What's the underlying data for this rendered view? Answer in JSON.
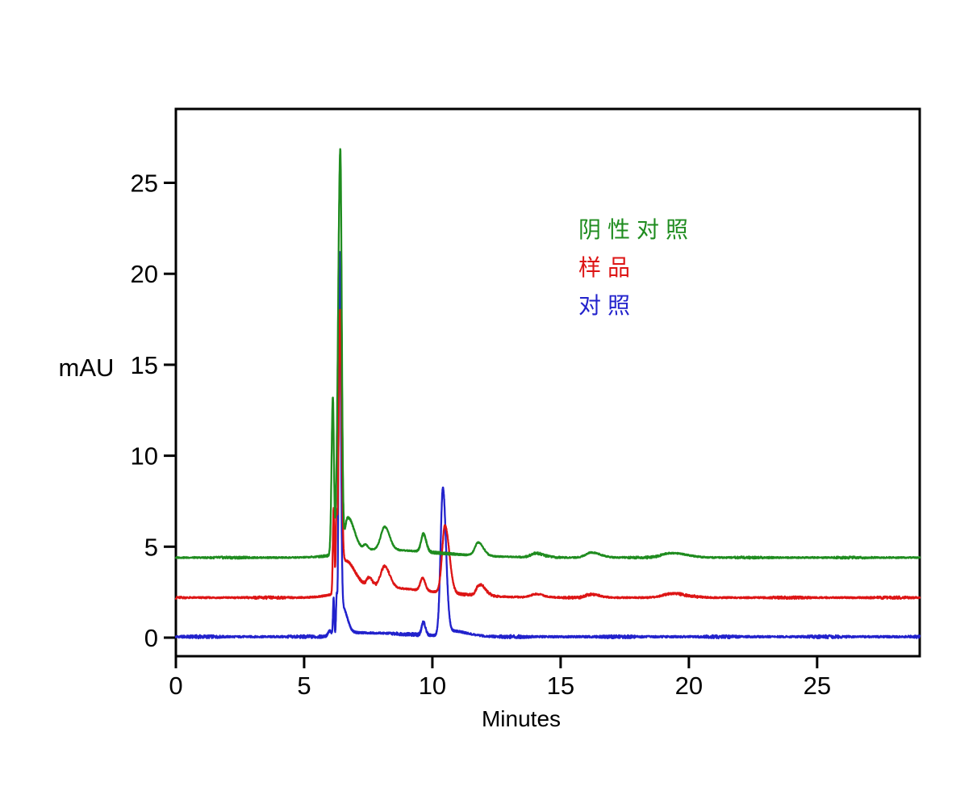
{
  "figure": {
    "background": "#ffffff",
    "description": "HPLC chromatogram overlay of three traces"
  },
  "axes": {
    "x_tick_labels": [
      "0",
      "5",
      "10",
      "15",
      "20",
      "25"
    ],
    "y_tick_labels": [
      "0",
      "5",
      "10",
      "15",
      "20",
      "25"
    ],
    "x_axis_title": "Minutes",
    "y_axis_title": "mAU"
  },
  "legend": {
    "items": [
      {
        "label": "阴性对照",
        "slug": "negative-control",
        "color": "#1f8c1f"
      },
      {
        "label": "样品",
        "slug": "sample",
        "color": "#dd1515"
      },
      {
        "label": "对照",
        "slug": "control",
        "color": "#2222cc"
      }
    ]
  },
  "chart_data": {
    "type": "line",
    "title": "",
    "xlabel": "Minutes",
    "ylabel": "mAU",
    "xlim": [
      0,
      29.0
    ],
    "ylim": [
      -1.02,
      29.06
    ],
    "xticks": [
      0,
      5,
      10,
      15,
      20,
      25
    ],
    "yticks": [
      0,
      5,
      10,
      15,
      20,
      25
    ],
    "grid": false,
    "legend_position": "inside-upper-right",
    "series": [
      {
        "name": "对照",
        "slug": "control",
        "color": "#2222cc",
        "baseline_mAU": 0.05,
        "noise_mAU": 0.05,
        "peaks": [
          {
            "t": 6.0,
            "h": 0.3,
            "wl": 0.07,
            "wr": 0.07
          },
          {
            "t": 6.15,
            "h": 2.05,
            "wl": 0.025,
            "wr": 0.025
          },
          {
            "t": 6.27,
            "h": 2.2,
            "wl": 0.025,
            "wr": 0.025
          },
          {
            "t": 6.38,
            "h": 20.85,
            "wl": 0.035,
            "wr": 0.05
          },
          {
            "t": 6.5,
            "h": 1.5,
            "wl": 0.06,
            "wr": 0.18
          },
          {
            "t": 7.1,
            "h": 0.22,
            "wl": 0.5,
            "wr": 2.0
          },
          {
            "t": 9.65,
            "h": 0.7,
            "wl": 0.07,
            "wr": 0.08
          },
          {
            "t": 10.41,
            "h": 8.05,
            "wl": 0.09,
            "wr": 0.12
          },
          {
            "t": 10.75,
            "h": 0.28,
            "wl": 0.2,
            "wr": 0.6
          }
        ]
      },
      {
        "name": "样品",
        "slug": "sample",
        "color": "#dd1515",
        "baseline_mAU": 2.2,
        "noise_mAU": 0.04,
        "peaks": [
          {
            "t": 6.15,
            "h": 4.7,
            "wl": 0.03,
            "wr": 0.03
          },
          {
            "t": 6.26,
            "h": 3.9,
            "wl": 0.028,
            "wr": 0.028
          },
          {
            "t": 6.4,
            "h": 15.3,
            "wl": 0.055,
            "wr": 0.06
          },
          {
            "t": 6.6,
            "h": 1.6,
            "wl": 0.1,
            "wr": 0.35
          },
          {
            "t": 7.3,
            "h": 0.6,
            "wl": 0.8,
            "wr": 2.5
          },
          {
            "t": 7.55,
            "h": 0.5,
            "wl": 0.1,
            "wr": 0.11
          },
          {
            "t": 8.14,
            "h": 1.15,
            "wl": 0.16,
            "wr": 0.2
          },
          {
            "t": 9.62,
            "h": 0.7,
            "wl": 0.09,
            "wr": 0.1
          },
          {
            "t": 10.49,
            "h": 3.7,
            "wl": 0.11,
            "wr": 0.17
          },
          {
            "t": 11.85,
            "h": 0.6,
            "wl": 0.13,
            "wr": 0.22
          },
          {
            "t": 14.05,
            "h": 0.18,
            "wl": 0.2,
            "wr": 0.28
          },
          {
            "t": 16.2,
            "h": 0.18,
            "wl": 0.22,
            "wr": 0.32
          },
          {
            "t": 19.35,
            "h": 0.22,
            "wl": 0.35,
            "wr": 0.55
          }
        ]
      },
      {
        "name": "阴性对照",
        "slug": "negative-control",
        "color": "#1f8c1f",
        "baseline_mAU": 4.4,
        "noise_mAU": 0.035,
        "peaks": [
          {
            "t": 6.12,
            "h": 8.6,
            "wl": 0.05,
            "wr": 0.04
          },
          {
            "t": 6.41,
            "h": 22.1,
            "wl": 0.085,
            "wr": 0.055
          },
          {
            "t": 6.7,
            "h": 1.9,
            "wl": 0.12,
            "wr": 0.25
          },
          {
            "t": 7.6,
            "h": 0.45,
            "wl": 1.0,
            "wr": 2.5
          },
          {
            "t": 7.4,
            "h": 0.25,
            "wl": 0.08,
            "wr": 0.08
          },
          {
            "t": 8.14,
            "h": 1.26,
            "wl": 0.15,
            "wr": 0.19
          },
          {
            "t": 9.65,
            "h": 0.98,
            "wl": 0.09,
            "wr": 0.11
          },
          {
            "t": 11.79,
            "h": 0.72,
            "wl": 0.13,
            "wr": 0.2
          },
          {
            "t": 14.05,
            "h": 0.22,
            "wl": 0.2,
            "wr": 0.28
          },
          {
            "t": 16.2,
            "h": 0.28,
            "wl": 0.22,
            "wr": 0.35
          },
          {
            "t": 19.3,
            "h": 0.25,
            "wl": 0.35,
            "wr": 0.6
          }
        ]
      }
    ]
  }
}
